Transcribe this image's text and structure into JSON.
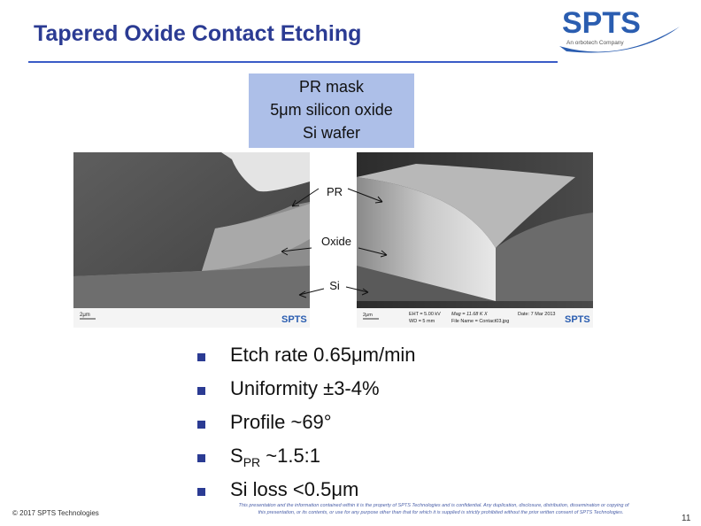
{
  "header": {
    "title": "Tapered Oxide Contact Etching",
    "logo": "SPTS",
    "logo_tagline": "An orbotech Company"
  },
  "stack": [
    "PR mask",
    "5μm silicon oxide",
    "Si wafer"
  ],
  "labels": [
    "PR",
    "Oxide",
    "Si"
  ],
  "sem_left": {
    "scale": "2μm",
    "brand": "SPTS"
  },
  "sem_right": {
    "scale": "2μm",
    "eht": "EHT = 5.00 kV",
    "wd": "WD = 5 mm",
    "mag": "Mag = 11.68 K X",
    "file": "File Name = Contact03.jpg",
    "date": "Date: 7 Mar 2013",
    "brand": "SPTS"
  },
  "bullets": [
    "Etch rate 0.65μm/min",
    "Uniformity ±3-4%",
    "Profile ~69°",
    {
      "main": "S",
      "sub": "PR",
      "rest": " ~1.5:1"
    },
    "Si loss <0.5μm"
  ],
  "footer": {
    "copyright": "© 2017 SPTS Technologies",
    "disclaimer": [
      "This presentation and the information contained within it is the property of SPTS Technologies and is confidential. Any duplication, disclosure, distribution, dissemination or copying of",
      "this presentation, or its contents, or use for any purpose other than that for which it is supplied is strictly prohibited without the prior written consent of SPTS Technologies."
    ],
    "page": "11"
  }
}
